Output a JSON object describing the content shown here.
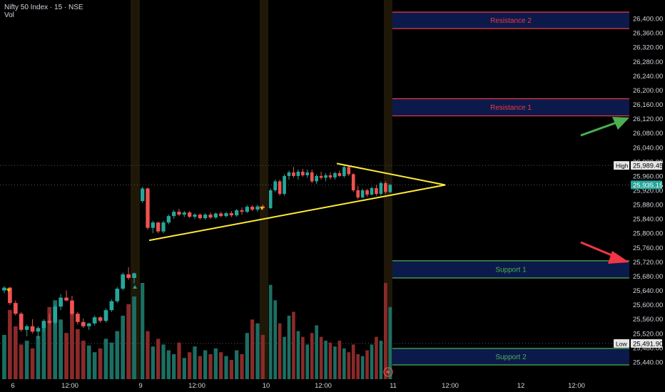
{
  "header": {
    "title": "Nifty 50 Index · 15 · NSE",
    "volume_label": "Vol"
  },
  "colors": {
    "bull": "#26a69a",
    "bear": "#ef5350",
    "vol_bull": "#1b6f63",
    "vol_bear": "#8a2a2a",
    "resistance_border": "#f23645",
    "resistance_text": "#f23645",
    "support_border": "#4caf50",
    "support_text": "#4caf50",
    "zone_fill": "#0c1a4b",
    "triangle": "#ffeb3b",
    "arrow_up": "#4caf50",
    "arrow_down": "#f23645",
    "session_band": "#1f1808",
    "axis_text": "#d1d4dc"
  },
  "chart_data": {
    "type": "candlestick",
    "yaxis": {
      "min": 25420,
      "max": 26420,
      "ticks": [
        26400,
        26360,
        26320,
        26280,
        26240,
        26200,
        26160,
        26120,
        26080,
        26040,
        26000,
        25960,
        25920,
        25880,
        25840,
        25800,
        25760,
        25720,
        25680,
        25640,
        25600,
        25560,
        25520,
        25480,
        25440
      ],
      "tick_labels": [
        "26,400.00",
        "26,360.00",
        "26,320.00",
        "26,280.00",
        "26,240.00",
        "26,200.00",
        "26,160.00",
        "26,120.00",
        "26,080.00",
        "26,040.00",
        "26,000.00",
        "25,960.00",
        "25,920.00",
        "25,880.00",
        "25,840.00",
        "25,800.00",
        "25,760.00",
        "25,720.00",
        "25,680.00",
        "25,640.00",
        "25,600.00",
        "25,560.00",
        "25,520.00",
        "25,480.00",
        "25,440.00"
      ]
    },
    "xaxis": {
      "labels": [
        "6",
        "12:00",
        "9",
        "12:00",
        "10",
        "12:00",
        "11",
        "12:00",
        "12",
        "12:00"
      ]
    },
    "price_markers": [
      {
        "label": "High",
        "value": 25989.45,
        "text": "25,989.45"
      },
      {
        "label": "",
        "value": 25935.15,
        "text": "25,935.15"
      },
      {
        "label": "Low",
        "value": 25491.9,
        "text": "25,491.90"
      }
    ],
    "zones": [
      {
        "name": "Resistance 2",
        "kind": "resistance",
        "top": 26418,
        "bottom": 26372
      },
      {
        "name": "Resistance 1",
        "kind": "resistance",
        "top": 26176,
        "bottom": 26128
      },
      {
        "name": "Support 1",
        "kind": "support",
        "top": 25723,
        "bottom": 25675
      },
      {
        "name": "Support 2",
        "kind": "support",
        "top": 25478,
        "bottom": 25432
      }
    ],
    "triangle": {
      "apex_price": 25935,
      "upper_start_price": 25995,
      "lower_start_price": 25780
    },
    "candles_day1": [
      [
        25640,
        25652,
        25632,
        25648
      ],
      [
        25648,
        25650,
        25600,
        25605
      ],
      [
        25605,
        25612,
        25570,
        25575
      ],
      [
        25575,
        25580,
        25525,
        25530
      ],
      [
        25530,
        25545,
        25512,
        25540
      ],
      [
        25540,
        25560,
        25520,
        25525
      ],
      [
        25525,
        25540,
        25505,
        25535
      ],
      [
        25535,
        25560,
        25525,
        25555
      ],
      [
        25555,
        25575,
        25545,
        25550
      ],
      [
        25550,
        25600,
        25545,
        25595
      ],
      [
        25595,
        25630,
        25585,
        25620
      ],
      [
        25620,
        25640,
        25610,
        25612
      ],
      [
        25612,
        25625,
        25570,
        25575
      ],
      [
        25575,
        25580,
        25545,
        25552
      ],
      [
        25552,
        25562,
        25535,
        25540
      ],
      [
        25540,
        25550,
        25530,
        25548
      ],
      [
        25548,
        25570,
        25542,
        25565
      ],
      [
        25565,
        25568,
        25550,
        25555
      ],
      [
        25555,
        25590,
        25550,
        25585
      ],
      [
        25585,
        25615,
        25580,
        25610
      ],
      [
        25610,
        25650,
        25605,
        25645
      ],
      [
        25645,
        25690,
        25640,
        25685
      ],
      [
        25685,
        25705,
        25670,
        25675
      ],
      [
        25675,
        25690,
        25660,
        25688
      ]
    ],
    "candles_day2": [
      [
        25890,
        25930,
        25885,
        25925
      ],
      [
        25925,
        25928,
        25810,
        25815
      ],
      [
        25815,
        25835,
        25800,
        25830
      ],
      [
        25830,
        25832,
        25800,
        25805
      ],
      [
        25805,
        25835,
        25800,
        25830
      ],
      [
        25830,
        25852,
        25825,
        25848
      ],
      [
        25848,
        25865,
        25840,
        25860
      ],
      [
        25860,
        25868,
        25848,
        25852
      ],
      [
        25852,
        25862,
        25845,
        25858
      ],
      [
        25858,
        25862,
        25842,
        25846
      ],
      [
        25846,
        25856,
        25840,
        25852
      ],
      [
        25852,
        25855,
        25838,
        25842
      ],
      [
        25842,
        25856,
        25838,
        25852
      ],
      [
        25852,
        25858,
        25840,
        25844
      ],
      [
        25844,
        25858,
        25840,
        25855
      ],
      [
        25855,
        25860,
        25845,
        25848
      ],
      [
        25848,
        25860,
        25844,
        25856
      ],
      [
        25856,
        25862,
        25845,
        25850
      ],
      [
        25850,
        25868,
        25846,
        25864
      ],
      [
        25864,
        25872,
        25852,
        25860
      ],
      [
        25860,
        25878,
        25856,
        25874
      ],
      [
        25874,
        25878,
        25862,
        25866
      ],
      [
        25866,
        25880,
        25860,
        25875
      ],
      [
        25875,
        25880,
        25866,
        25870
      ]
    ],
    "candles_day3": [
      [
        25870,
        25925,
        25868,
        25920
      ],
      [
        25920,
        25950,
        25915,
        25945
      ],
      [
        25945,
        25950,
        25905,
        25910
      ],
      [
        25910,
        25965,
        25905,
        25960
      ],
      [
        25960,
        25975,
        25950,
        25970
      ],
      [
        25970,
        25985,
        25955,
        25960
      ],
      [
        25960,
        25978,
        25950,
        25972
      ],
      [
        25972,
        25980,
        25958,
        25962
      ],
      [
        25962,
        25978,
        25955,
        25970
      ],
      [
        25970,
        25978,
        25940,
        25945
      ],
      [
        25945,
        25965,
        25938,
        25960
      ],
      [
        25960,
        25972,
        25950,
        25955
      ],
      [
        25955,
        25968,
        25945,
        25962
      ],
      [
        25962,
        25970,
        25950,
        25956
      ],
      [
        25956,
        25972,
        25950,
        25968
      ],
      [
        25968,
        25975,
        25958,
        25960
      ],
      [
        25960,
        25990,
        25955,
        25985
      ],
      [
        25985,
        25989,
        25960,
        25965
      ],
      [
        25965,
        25968,
        25915,
        25920
      ],
      [
        25920,
        25932,
        25895,
        25900
      ],
      [
        25900,
        25925,
        25898,
        25920
      ],
      [
        25920,
        25924,
        25902,
        25908
      ],
      [
        25908,
        25930,
        25905,
        25926
      ],
      [
        25926,
        25935,
        25905,
        25910
      ],
      [
        25910,
        25945,
        25905,
        25940
      ],
      [
        25940,
        25945,
        25910,
        25915
      ],
      [
        25915,
        25938,
        25912,
        25935
      ]
    ],
    "volumes_day1": [
      0.46,
      0.72,
      0.55,
      0.36,
      0.4,
      0.32,
      0.45,
      0.58,
      0.75,
      0.82,
      0.62,
      0.48,
      0.7,
      0.52,
      0.4,
      0.35,
      0.28,
      0.32,
      0.42,
      0.38,
      0.5,
      0.66,
      0.78,
      0.86
    ],
    "volumes_day2": [
      1.0,
      0.5,
      0.34,
      0.42,
      0.36,
      0.3,
      0.26,
      0.38,
      0.22,
      0.28,
      0.34,
      0.24,
      0.3,
      0.26,
      0.32,
      0.28,
      0.24,
      0.2,
      0.3,
      0.26,
      0.48,
      0.62,
      0.58,
      0.46
    ],
    "volumes_day3": [
      0.98,
      0.82,
      0.58,
      0.44,
      0.66,
      0.7,
      0.5,
      0.44,
      0.36,
      0.48,
      0.56,
      0.44,
      0.4,
      0.38,
      0.34,
      0.4,
      0.32,
      0.28,
      0.36,
      0.26,
      0.24,
      0.3,
      0.36,
      0.44,
      0.4,
      1.0,
      0.75
    ]
  }
}
